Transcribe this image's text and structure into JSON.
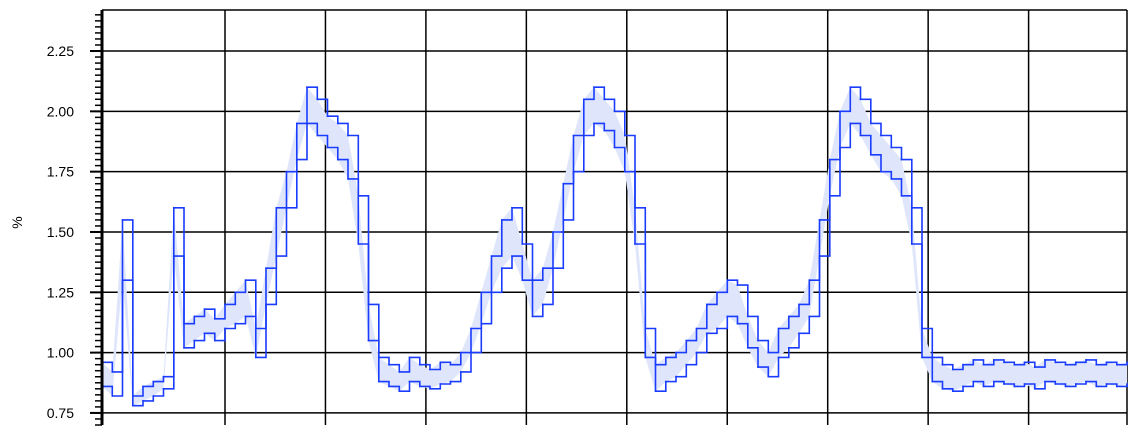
{
  "chart_data": {
    "type": "line",
    "title": "",
    "xlabel": "",
    "ylabel": "%",
    "ylim": [
      0.7,
      2.42
    ],
    "xlim": [
      0,
      1000
    ],
    "y_ticks": [
      0.75,
      1.0,
      1.25,
      1.5,
      1.75,
      2.0,
      2.25
    ],
    "y_tick_labels": [
      "0.75",
      "1.00",
      "1.25",
      "1.50",
      "1.75",
      "2.00",
      "2.25"
    ],
    "x_gridlines": [
      0,
      120,
      218,
      316,
      414,
      512,
      610,
      708,
      806,
      904,
      1000
    ],
    "grid": true,
    "band_fill": "#dfe6fb",
    "colors": {
      "line": "#1a3cff",
      "band": "#dfe6fb",
      "grid": "#000000"
    },
    "series": [
      {
        "x": [
          0,
          10,
          20,
          30,
          40,
          50,
          60,
          70,
          80,
          90,
          100,
          110,
          120,
          130,
          140,
          150,
          160,
          170,
          180,
          190,
          200,
          210,
          220,
          230,
          240,
          250,
          260,
          270,
          280,
          290,
          300,
          310,
          320,
          330,
          340,
          350,
          360,
          370,
          380,
          390,
          400,
          410,
          420,
          430,
          440,
          450,
          460,
          470,
          480,
          490,
          500,
          510,
          520,
          530,
          540,
          550,
          560,
          570,
          580,
          590,
          600,
          610,
          620,
          630,
          640,
          650,
          660,
          670,
          680,
          690,
          700,
          710,
          720,
          730,
          740,
          750,
          760,
          770,
          780,
          790,
          800,
          810,
          820,
          830,
          840,
          850,
          860,
          870,
          880,
          890,
          900,
          910,
          920,
          930,
          940,
          950,
          960,
          970,
          980,
          990,
          1000
        ],
        "values": [
          0.96,
          0.92,
          1.55,
          0.82,
          0.86,
          0.88,
          0.9,
          1.6,
          1.12,
          1.15,
          1.18,
          1.14,
          1.2,
          1.25,
          1.3,
          1.1,
          1.35,
          1.6,
          1.75,
          1.95,
          2.1,
          2.05,
          1.98,
          1.95,
          1.9,
          1.65,
          1.2,
          0.98,
          0.95,
          0.92,
          0.98,
          0.95,
          0.93,
          0.96,
          0.95,
          1.0,
          1.1,
          1.25,
          1.4,
          1.55,
          1.6,
          1.45,
          1.3,
          1.35,
          1.5,
          1.7,
          1.9,
          2.05,
          2.1,
          2.05,
          2.0,
          1.9,
          1.6,
          1.1,
          0.95,
          0.98,
          1.0,
          1.05,
          1.1,
          1.2,
          1.25,
          1.3,
          1.28,
          1.15,
          1.05,
          1.0,
          1.1,
          1.15,
          1.2,
          1.3,
          1.55,
          1.8,
          2.0,
          2.1,
          2.05,
          1.95,
          1.9,
          1.85,
          1.8,
          1.6,
          1.1,
          0.98,
          0.95,
          0.93,
          0.95,
          0.97,
          0.95,
          0.97,
          0.96,
          0.95,
          0.96,
          0.94,
          0.97,
          0.96,
          0.95,
          0.96,
          0.97,
          0.95,
          0.96,
          0.95,
          0.96
        ]
      },
      {
        "x": [
          0,
          10,
          20,
          30,
          40,
          50,
          60,
          70,
          80,
          90,
          100,
          110,
          120,
          130,
          140,
          150,
          160,
          170,
          180,
          190,
          200,
          210,
          220,
          230,
          240,
          250,
          260,
          270,
          280,
          290,
          300,
          310,
          320,
          330,
          340,
          350,
          360,
          370,
          380,
          390,
          400,
          410,
          420,
          430,
          440,
          450,
          460,
          470,
          480,
          490,
          500,
          510,
          520,
          530,
          540,
          550,
          560,
          570,
          580,
          590,
          600,
          610,
          620,
          630,
          640,
          650,
          660,
          670,
          680,
          690,
          700,
          710,
          720,
          730,
          740,
          750,
          760,
          770,
          780,
          790,
          800,
          810,
          820,
          830,
          840,
          850,
          860,
          870,
          880,
          890,
          900,
          910,
          920,
          930,
          940,
          950,
          960,
          970,
          980,
          990,
          1000
        ],
        "values": [
          0.86,
          0.82,
          1.3,
          0.78,
          0.8,
          0.82,
          0.85,
          1.4,
          1.02,
          1.05,
          1.08,
          1.05,
          1.1,
          1.12,
          1.15,
          0.98,
          1.2,
          1.4,
          1.6,
          1.8,
          1.95,
          1.9,
          1.85,
          1.8,
          1.72,
          1.45,
          1.05,
          0.88,
          0.86,
          0.84,
          0.88,
          0.86,
          0.85,
          0.87,
          0.88,
          0.92,
          1.0,
          1.12,
          1.25,
          1.35,
          1.4,
          1.3,
          1.15,
          1.2,
          1.35,
          1.55,
          1.75,
          1.9,
          1.95,
          1.92,
          1.85,
          1.75,
          1.45,
          0.98,
          0.84,
          0.88,
          0.9,
          0.95,
          1.0,
          1.08,
          1.1,
          1.15,
          1.12,
          1.02,
          0.94,
          0.9,
          0.98,
          1.02,
          1.08,
          1.15,
          1.4,
          1.65,
          1.85,
          1.95,
          1.9,
          1.82,
          1.75,
          1.72,
          1.65,
          1.45,
          0.98,
          0.88,
          0.85,
          0.84,
          0.86,
          0.88,
          0.86,
          0.88,
          0.87,
          0.86,
          0.87,
          0.85,
          0.88,
          0.87,
          0.86,
          0.87,
          0.88,
          0.86,
          0.87,
          0.86,
          0.87
        ]
      }
    ]
  }
}
